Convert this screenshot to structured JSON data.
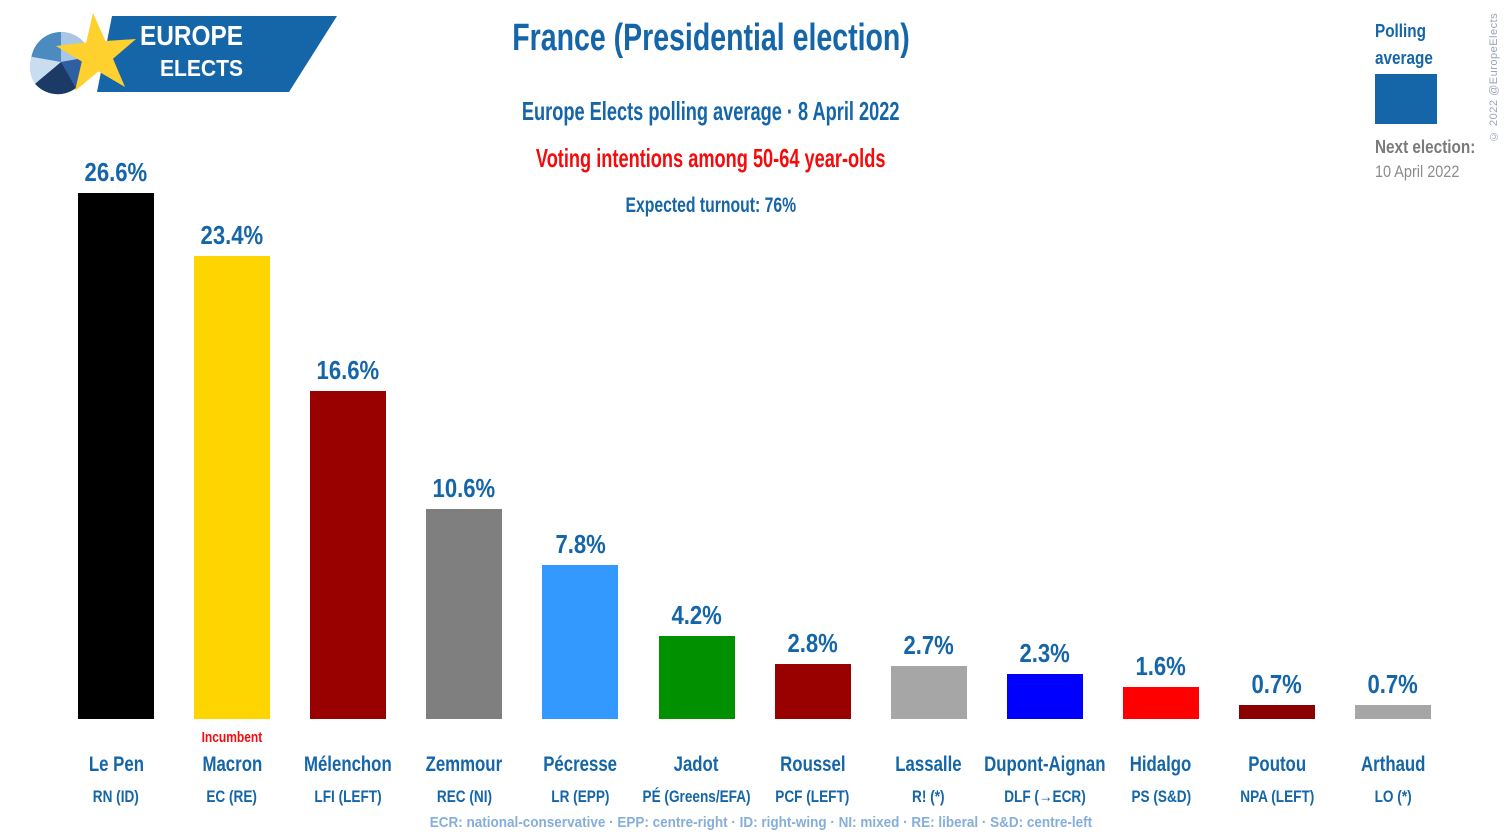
{
  "logo": {
    "line1": "EUROPE",
    "line2": "ELECTS"
  },
  "header": {
    "title": "France (Presidential election)",
    "subtitle": "Europe Elects polling average · 8 April 2022",
    "audience": "Voting intentions among 50-64 year-olds",
    "turnout": "Expected turnout: 76%"
  },
  "legend": {
    "label_line1": "Polling",
    "label_line2": "average",
    "swatch_color": "#1565A9",
    "next_election_label": "Next election:",
    "next_election_date": "10 April 2022"
  },
  "watermark": "© 2022 @EuropeElects",
  "footer": "ECR: national-conservative · EPP: centre-right · ID: right-wing · NI: mixed · RE: liberal · S&D: centre-left",
  "colors": {
    "accent_blue": "#1565A9",
    "accent_red": "#F40B0B",
    "footer_blue": "#85AED9",
    "gray_text": "#7A7A7A",
    "watermark_gray": "#99A3B8",
    "star_yellow": "#FFD12E"
  },
  "chart_data": {
    "type": "bar",
    "title": "France (Presidential election)",
    "subtitle": "Europe Elects polling average · 8 April 2022",
    "note": "Voting intentions among 50-64 year-olds",
    "expected_turnout": "76%",
    "unit": "%",
    "ylim": [
      0,
      28
    ],
    "grid": false,
    "legend_position": "top-right",
    "categories": [
      "Le Pen",
      "Macron",
      "Mélenchon",
      "Zemmour",
      "Pécresse",
      "Jadot",
      "Roussel",
      "Lassalle",
      "Dupont-Aignan",
      "Hidalgo",
      "Poutou",
      "Arthaud"
    ],
    "bars": [
      {
        "candidate": "Le Pen",
        "party": "RN (ID)",
        "value": 26.6,
        "label": "26.6%",
        "color": "#000000"
      },
      {
        "candidate": "Macron",
        "party": "EC (RE)",
        "value": 23.4,
        "label": "23.4%",
        "color": "#FFD500",
        "note": "Incumbent"
      },
      {
        "candidate": "Mélenchon",
        "party": "LFI (LEFT)",
        "value": 16.6,
        "label": "16.6%",
        "color": "#990000"
      },
      {
        "candidate": "Zemmour",
        "party": "REC (NI)",
        "value": 10.6,
        "label": "10.6%",
        "color": "#7F7F7F"
      },
      {
        "candidate": "Pécresse",
        "party": "LR (EPP)",
        "value": 7.8,
        "label": "7.8%",
        "color": "#3399FF"
      },
      {
        "candidate": "Jadot",
        "party": "PÉ (Greens/EFA)",
        "value": 4.2,
        "label": "4.2%",
        "color": "#009000"
      },
      {
        "candidate": "Roussel",
        "party": "PCF (LEFT)",
        "value": 2.8,
        "label": "2.8%",
        "color": "#990000"
      },
      {
        "candidate": "Lassalle",
        "party": "R! (*)",
        "value": 2.7,
        "label": "2.7%",
        "color": "#A6A6A6"
      },
      {
        "candidate": "Dupont-Aignan",
        "party": "DLF (→ECR)",
        "value": 2.3,
        "label": "2.3%",
        "color": "#0000FF"
      },
      {
        "candidate": "Hidalgo",
        "party": "PS (S&D)",
        "value": 1.6,
        "label": "1.6%",
        "color": "#FF0000"
      },
      {
        "candidate": "Poutou",
        "party": "NPA (LEFT)",
        "value": 0.7,
        "label": "0.7%",
        "color": "#8B0000"
      },
      {
        "candidate": "Arthaud",
        "party": "LO (*)",
        "value": 0.7,
        "label": "0.7%",
        "color": "#A6A6A6"
      }
    ]
  }
}
